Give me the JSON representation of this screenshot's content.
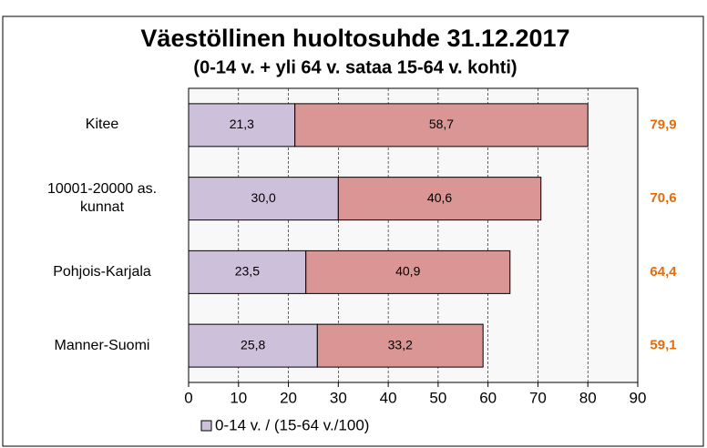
{
  "chart_data": {
    "type": "stacked-barh",
    "title": "Väestöllinen huoltosuhde 31.12.2017",
    "subtitle": "(0-14 v. + yli 64 v. sataa 15-64 v. kohti)",
    "categories": [
      "Kitee",
      "10001-20000 as. kunnat",
      "Pohjois-Karjala",
      "Manner-Suomi"
    ],
    "series": [
      {
        "name": "0-14 v. / (15-64 v./100)",
        "color": "#ccc0da",
        "values": [
          21.3,
          30.0,
          23.5,
          25.8
        ],
        "value_labels": [
          "21,3",
          "30,0",
          "23,5",
          "25,8"
        ]
      },
      {
        "color": "#d99694",
        "values": [
          58.7,
          40.6,
          40.9,
          33.2
        ],
        "value_labels": [
          "58,7",
          "40,6",
          "40,9",
          "33,2"
        ]
      }
    ],
    "totals": [
      79.9,
      70.6,
      64.4,
      59.1
    ],
    "total_labels": [
      "79,9",
      "70,6",
      "64,4",
      "59,1"
    ],
    "total_color": "#e46c0a",
    "xlim": [
      0,
      90
    ],
    "xticks": [
      0,
      10,
      20,
      30,
      40,
      50,
      60,
      70,
      80,
      90
    ],
    "grid": true
  }
}
